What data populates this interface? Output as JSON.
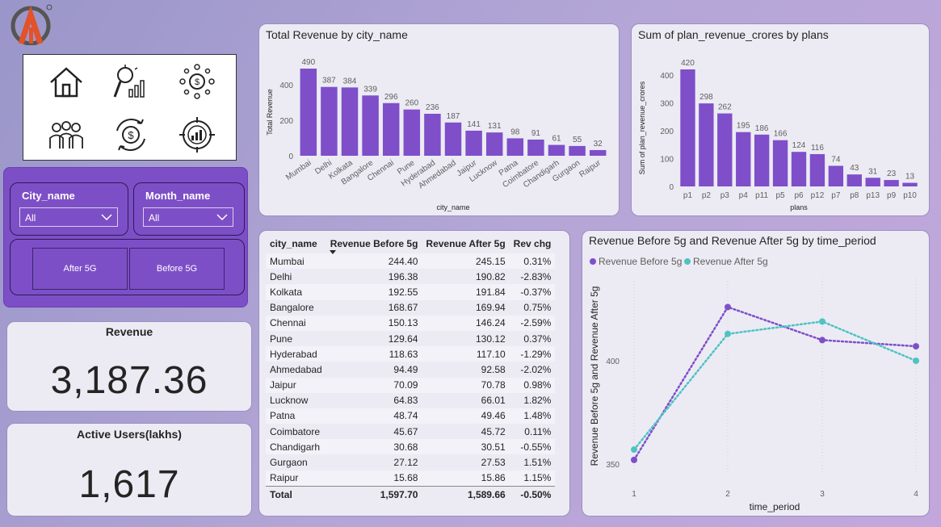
{
  "nav_icons": [
    "home-icon",
    "insights-icon",
    "finance-network-icon",
    "users-icon",
    "money-cycle-icon",
    "target-chart-icon"
  ],
  "filters": {
    "city": {
      "title": "City_name",
      "value": "All"
    },
    "month": {
      "title": "Month_name",
      "value": "All"
    },
    "buttons": [
      "After 5G",
      "Before 5G"
    ]
  },
  "kpis": {
    "revenue": {
      "label": "Revenue",
      "value": "3,187.36"
    },
    "active_users": {
      "label": "Active Users(lakhs)",
      "value": "1,617"
    }
  },
  "city_chart": {
    "title": "Total Revenue by city_name"
  },
  "plans_chart": {
    "title": "Sum of plan_revenue_crores by plans"
  },
  "line_chart": {
    "title": "Revenue Before 5g and Revenue After 5g by time_period"
  },
  "table": {
    "headers": [
      "city_name",
      "Revenue Before 5g",
      "Revenue After 5g",
      "Rev chg"
    ],
    "rows": [
      [
        "Mumbai",
        "244.40",
        "245.15",
        "0.31%"
      ],
      [
        "Delhi",
        "196.38",
        "190.82",
        "-2.83%"
      ],
      [
        "Kolkata",
        "192.55",
        "191.84",
        "-0.37%"
      ],
      [
        "Bangalore",
        "168.67",
        "169.94",
        "0.75%"
      ],
      [
        "Chennai",
        "150.13",
        "146.24",
        "-2.59%"
      ],
      [
        "Pune",
        "129.64",
        "130.12",
        "0.37%"
      ],
      [
        "Hyderabad",
        "118.63",
        "117.10",
        "-1.29%"
      ],
      [
        "Ahmedabad",
        "94.49",
        "92.58",
        "-2.02%"
      ],
      [
        "Jaipur",
        "70.09",
        "70.78",
        "0.98%"
      ],
      [
        "Lucknow",
        "64.83",
        "66.01",
        "1.82%"
      ],
      [
        "Patna",
        "48.74",
        "49.46",
        "1.48%"
      ],
      [
        "Coimbatore",
        "45.67",
        "45.72",
        "0.11%"
      ],
      [
        "Chandigarh",
        "30.68",
        "30.51",
        "-0.55%"
      ],
      [
        "Gurgaon",
        "27.12",
        "27.53",
        "1.51%"
      ],
      [
        "Raipur",
        "15.68",
        "15.86",
        "1.15%"
      ]
    ],
    "total": [
      "Total",
      "1,597.70",
      "1,589.66",
      "-0.50%"
    ]
  },
  "colors": {
    "bar": "#7e4fc9",
    "before": "#7e4fc9",
    "after": "#4fc3c3"
  },
  "chart_data": [
    {
      "type": "bar",
      "title": "Total Revenue by city_name",
      "xlabel": "city_name",
      "ylabel": "Total Revenue",
      "categories": [
        "Mumbai",
        "Delhi",
        "Kolkata",
        "Bangalore",
        "Chennai",
        "Pune",
        "Hyderabad",
        "Ahmedabad",
        "Jaipur",
        "Lucknow",
        "Patna",
        "Coimbatore",
        "Chandigarh",
        "Gurgaon",
        "Raipur"
      ],
      "values": [
        490,
        387,
        384,
        339,
        296,
        260,
        236,
        187,
        141,
        131,
        98,
        91,
        61,
        55,
        32
      ],
      "ylim": [
        0,
        490
      ],
      "yticks": [
        0,
        200,
        400
      ]
    },
    {
      "type": "bar",
      "title": "Sum of plan_revenue_crores by plans",
      "xlabel": "plans",
      "ylabel": "Sum of plan_revenue_crores",
      "categories": [
        "p1",
        "p2",
        "p3",
        "p4",
        "p11",
        "p5",
        "p6",
        "p12",
        "p7",
        "p8",
        "p13",
        "p9",
        "p10"
      ],
      "values": [
        420,
        298,
        262,
        195,
        186,
        166,
        124,
        116,
        74,
        43,
        31,
        23,
        13
      ],
      "ylim": [
        0,
        420
      ],
      "yticks": [
        0,
        100,
        200,
        300,
        400
      ]
    },
    {
      "type": "line",
      "title": "Revenue Before 5g and Revenue After 5g by time_period",
      "xlabel": "time_period",
      "ylabel": "Revenue Before 5g and Revenue After 5g",
      "x": [
        1,
        2,
        3,
        4
      ],
      "series": [
        {
          "name": "Revenue Before 5g",
          "values": [
            352,
            426,
            410,
            407
          ]
        },
        {
          "name": "Revenue After 5g",
          "values": [
            357,
            413,
            419,
            400
          ]
        }
      ],
      "ylim": [
        340,
        440
      ],
      "yticks": [
        350,
        400
      ]
    }
  ]
}
